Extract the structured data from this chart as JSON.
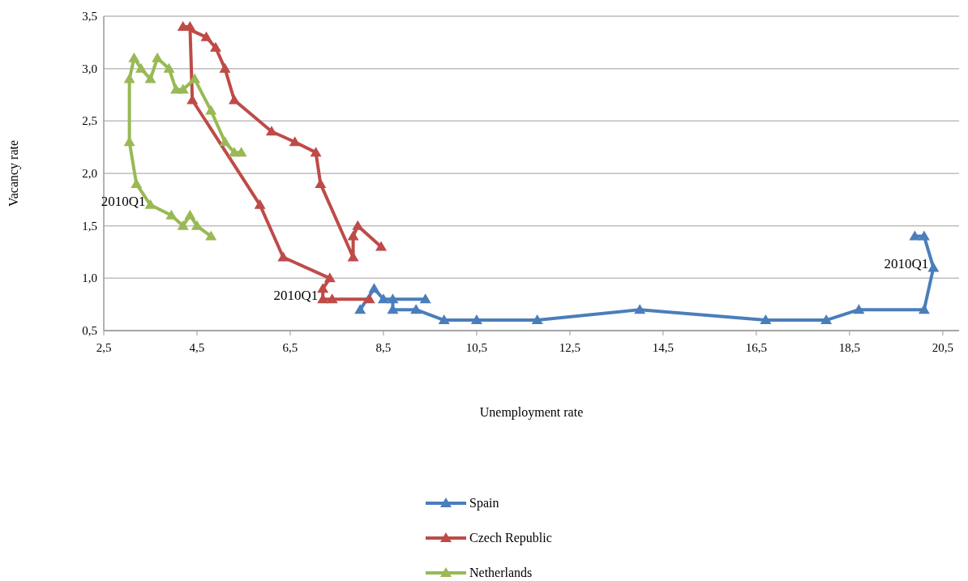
{
  "chart_data": {
    "type": "line",
    "xlabel": "Unemployment rate",
    "ylabel": "Vacancy rate",
    "xlim": [
      2.5,
      20.85
    ],
    "ylim": [
      0.5,
      3.5
    ],
    "xticks": [
      {
        "value": 2.5,
        "label": "2,5"
      },
      {
        "value": 4.5,
        "label": "4,5"
      },
      {
        "value": 6.5,
        "label": "6,5"
      },
      {
        "value": 8.5,
        "label": "8,5"
      },
      {
        "value": 10.5,
        "label": "10,5"
      },
      {
        "value": 12.5,
        "label": "12,5"
      },
      {
        "value": 14.5,
        "label": "14,5"
      },
      {
        "value": 16.5,
        "label": "16,5"
      },
      {
        "value": 18.5,
        "label": "18,5"
      },
      {
        "value": 20.5,
        "label": "20,5"
      }
    ],
    "yticks": [
      {
        "value": 0.5,
        "label": "0,5"
      },
      {
        "value": 1,
        "label": "1,0"
      },
      {
        "value": 1.5,
        "label": "1,5"
      },
      {
        "value": 2,
        "label": "2,0"
      },
      {
        "value": 2.5,
        "label": "2,5"
      },
      {
        "value": 3,
        "label": "3,0"
      },
      {
        "value": 3.5,
        "label": "3,5"
      }
    ],
    "grid": "y",
    "legend": "bottom",
    "marker": "triangle",
    "line_style": "solid",
    "series": [
      {
        "name": "Spain",
        "color": "#4a7ebb",
        "x": [
          19.9,
          20.1,
          20.3,
          20.1,
          18.7,
          18.0,
          16.7,
          14.0,
          11.8,
          10.5,
          9.8,
          9.2,
          8.7,
          8.7,
          9.4,
          8.5,
          8.3,
          8.0
        ],
        "values": [
          1.4,
          1.4,
          1.1,
          0.7,
          0.7,
          0.6,
          0.6,
          0.7,
          0.6,
          0.6,
          0.6,
          0.7,
          0.7,
          0.8,
          0.8,
          0.8,
          0.9,
          0.7
        ]
      },
      {
        "name": "Czech Republic",
        "color": "#be4b48",
        "x": [
          8.2,
          7.4,
          7.2,
          7.2,
          7.35,
          6.35,
          5.85,
          4.4,
          4.35,
          4.2,
          4.7,
          4.9,
          5.1,
          5.3,
          6.1,
          6.6,
          7.05,
          7.15,
          7.85,
          7.85,
          7.95,
          8.45
        ],
        "values": [
          0.8,
          0.8,
          0.8,
          0.9,
          1.0,
          1.2,
          1.7,
          2.7,
          3.4,
          3.4,
          3.3,
          3.2,
          3.0,
          2.7,
          2.4,
          2.3,
          2.2,
          1.9,
          1.2,
          1.4,
          1.5,
          1.3
        ]
      },
      {
        "name": "Netherlands",
        "color": "#98b954",
        "x": [
          4.8,
          4.5,
          4.35,
          4.2,
          3.95,
          3.5,
          3.2,
          3.05,
          3.05,
          3.15,
          3.3,
          3.5,
          3.65,
          3.9,
          4.05,
          4.2,
          4.45,
          4.8,
          5.1,
          5.3,
          5.45
        ],
        "values": [
          1.4,
          1.5,
          1.6,
          1.5,
          1.6,
          1.7,
          1.9,
          2.3,
          2.9,
          3.1,
          3.0,
          2.9,
          3.1,
          3.0,
          2.8,
          2.8,
          2.9,
          2.6,
          2.3,
          2.2,
          2.2
        ]
      }
    ],
    "annotations": [
      {
        "text": "2010Q1",
        "x": 20.3,
        "y": 1.1
      },
      {
        "text": "2010Q1",
        "x": 7.2,
        "y": 0.8
      },
      {
        "text": "2010Q1",
        "x": 3.5,
        "y": 1.7
      }
    ]
  }
}
